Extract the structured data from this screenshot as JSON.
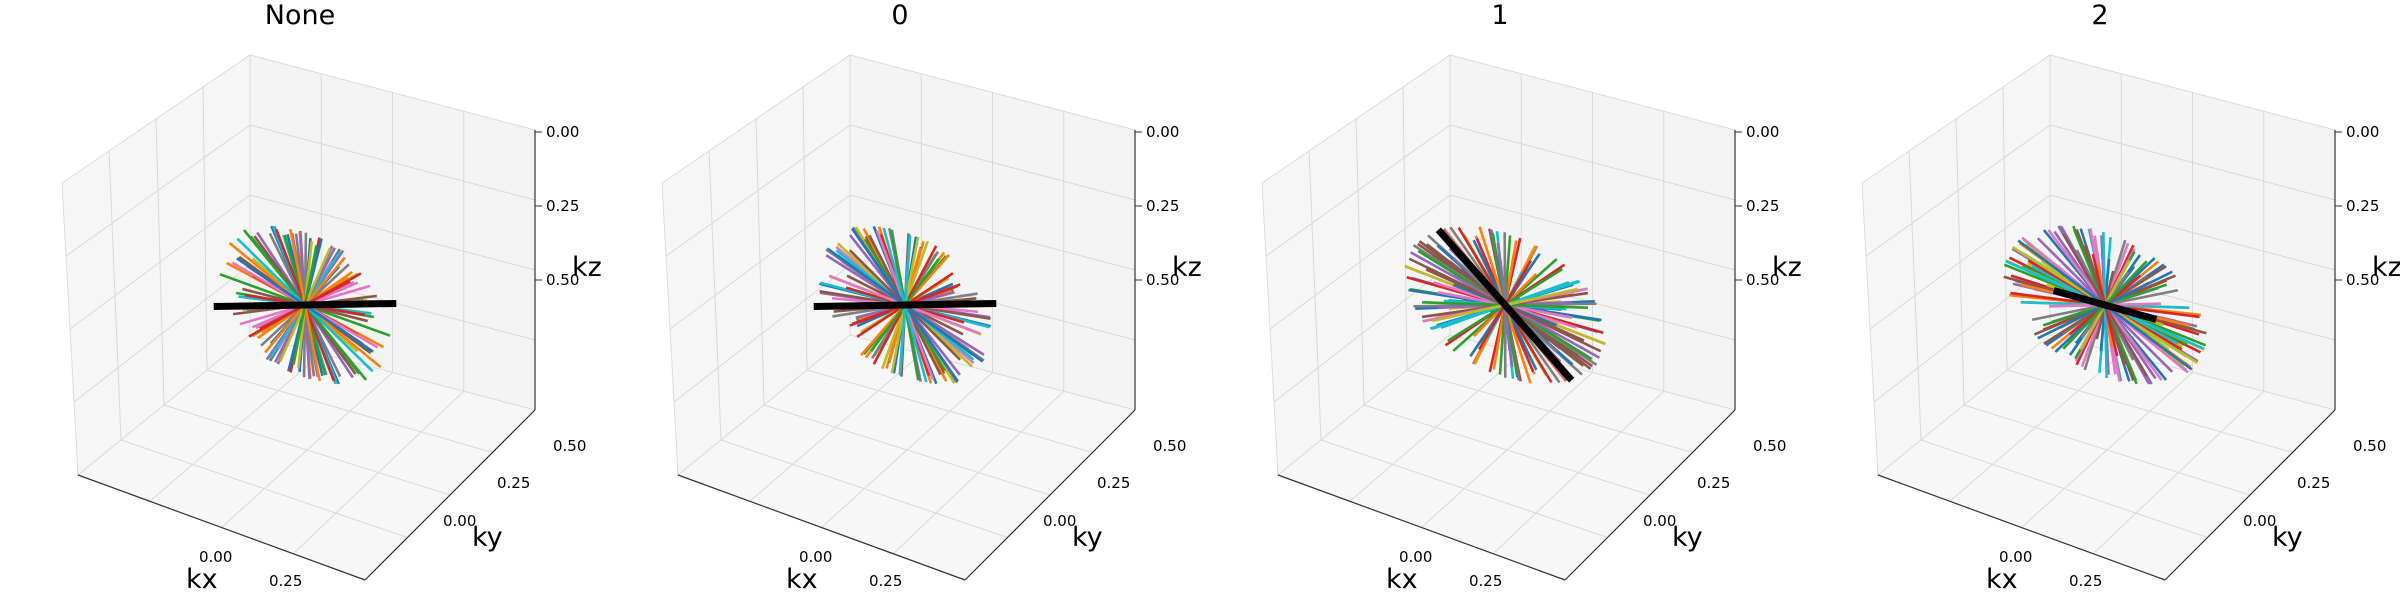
{
  "chart_data": [
    {
      "type": "line3d",
      "title": "None",
      "xlabel": "kx",
      "ylabel": "ky",
      "zlabel": "kz",
      "xlim": [
        -0.5,
        0.5
      ],
      "ylim": [
        -0.5,
        0.5
      ],
      "zlim": [
        -0.5,
        0.5
      ],
      "xticks": [
        "0.00",
        "0.25"
      ],
      "yticks": [
        "0.00",
        "0.25",
        "0.50"
      ],
      "zticks": [
        "0.00",
        "0.25",
        "0.50"
      ],
      "grid": true,
      "line_count": 64,
      "line_length": 0.5,
      "distribution": "clustered-near-kx-kz-plane",
      "highlight": {
        "color": "#000000",
        "direction": [
          0.72,
          -0.55,
          0.42
        ]
      }
    },
    {
      "type": "line3d",
      "title": "0",
      "xlabel": "kx",
      "ylabel": "ky",
      "zlabel": "kz",
      "xlim": [
        -0.5,
        0.5
      ],
      "ylim": [
        -0.5,
        0.5
      ],
      "zlim": [
        -0.5,
        0.5
      ],
      "xticks": [
        "0.00",
        "0.25"
      ],
      "yticks": [
        "0.00",
        "0.25",
        "0.50"
      ],
      "zticks": [
        "0.00",
        "0.25",
        "0.50"
      ],
      "grid": true,
      "line_count": 64,
      "line_length": 0.5,
      "distribution": "clustered-near-kx-kz-plane",
      "highlight": {
        "color": "#000000",
        "direction": [
          0.72,
          -0.55,
          0.42
        ]
      }
    },
    {
      "type": "line3d",
      "title": "1",
      "xlabel": "kx",
      "ylabel": "ky",
      "zlabel": "kz",
      "xlim": [
        -0.5,
        0.5
      ],
      "ylim": [
        -0.5,
        0.5
      ],
      "zlim": [
        -0.5,
        0.5
      ],
      "xticks": [
        "0.00",
        "0.25"
      ],
      "yticks": [
        "0.00",
        "0.25",
        "0.50"
      ],
      "zticks": [
        "0.00",
        "0.25",
        "0.50"
      ],
      "grid": true,
      "line_count": 96,
      "line_length": 0.5,
      "distribution": "uniform-sphere",
      "highlight": {
        "color": "#000000",
        "direction": [
          -0.45,
          0.3,
          0.6
        ]
      }
    },
    {
      "type": "line3d",
      "title": "2",
      "xlabel": "kx",
      "ylabel": "ky",
      "zlabel": "kz",
      "xlim": [
        -0.5,
        0.5
      ],
      "ylim": [
        -0.5,
        0.5
      ],
      "zlim": [
        -0.5,
        0.5
      ],
      "xticks": [
        "0.00",
        "0.25"
      ],
      "yticks": [
        "0.00",
        "0.25",
        "0.50"
      ],
      "zticks": [
        "0.00",
        "0.25",
        "0.50"
      ],
      "grid": true,
      "line_count": 96,
      "line_length": 0.5,
      "distribution": "uniform-sphere",
      "highlight": {
        "color": "#000000",
        "direction": [
          0.95,
          0.25,
          0.08
        ]
      }
    }
  ],
  "colors": [
    "#1f77b4",
    "#ff7f0e",
    "#2ca02c",
    "#d62728",
    "#9467bd",
    "#8c564b",
    "#e377c2",
    "#7f7f7f",
    "#bcbd22",
    "#17becf"
  ]
}
